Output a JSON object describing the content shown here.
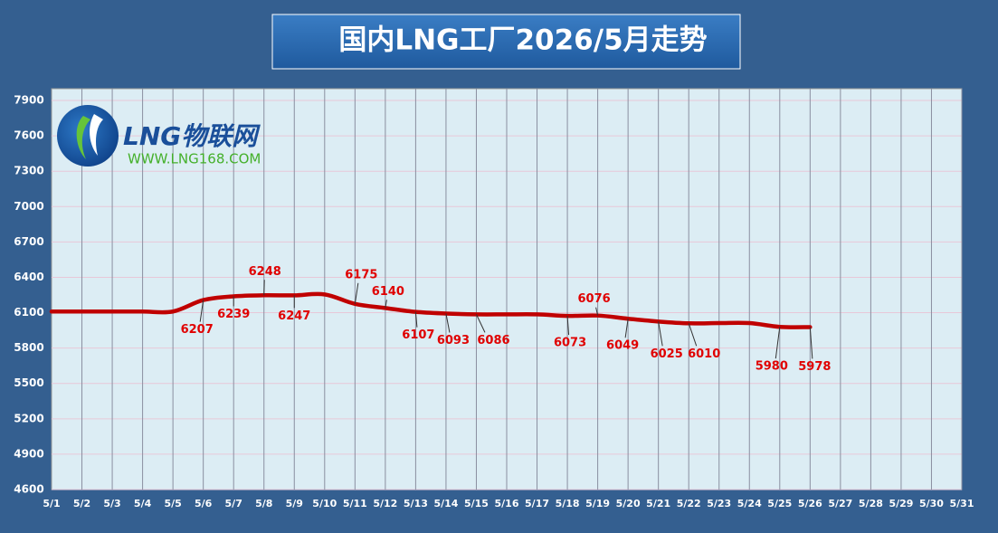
{
  "chart_data": {
    "type": "line",
    "title": "国内LNG工厂2026/5月走势",
    "categories": [
      "5/1",
      "5/2",
      "5/3",
      "5/4",
      "5/5",
      "5/6",
      "5/7",
      "5/8",
      "5/9",
      "5/10",
      "5/11",
      "5/12",
      "5/13",
      "5/14",
      "5/15",
      "5/16",
      "5/17",
      "5/18",
      "5/19",
      "5/20",
      "5/21",
      "5/22",
      "5/23",
      "5/24",
      "5/25",
      "5/26",
      "5/27",
      "5/28",
      "5/29",
      "5/30",
      "5/31"
    ],
    "series": [
      {
        "color": "#c00000",
        "values": [
          6110,
          6110,
          6110,
          6110,
          6110,
          6207,
          6239,
          6248,
          6247,
          6255,
          6175,
          6140,
          6107,
          6093,
          6086,
          6086,
          6086,
          6073,
          6076,
          6049,
          6025,
          6010,
          6012,
          6012,
          5980,
          5978,
          null,
          null,
          null,
          null,
          null
        ],
        "value_labels": [
          null,
          null,
          null,
          null,
          null,
          "6207",
          "6239",
          "6248",
          "6247",
          null,
          "6175",
          "6140",
          "6107",
          "6093",
          "6086",
          null,
          null,
          "6073",
          "6076",
          "6049",
          "6025",
          "6010",
          null,
          null,
          "5980",
          "5978",
          null,
          null,
          null,
          null,
          null
        ]
      }
    ],
    "ylim": [
      4600,
      8000
    ],
    "yticks": [
      4600,
      4900,
      5200,
      5500,
      5800,
      6100,
      6400,
      6700,
      7000,
      7300,
      7600,
      7900
    ],
    "grid": true
  },
  "logo": {
    "name": "LNG物联网",
    "url": "WWW.LNG168.COM"
  }
}
